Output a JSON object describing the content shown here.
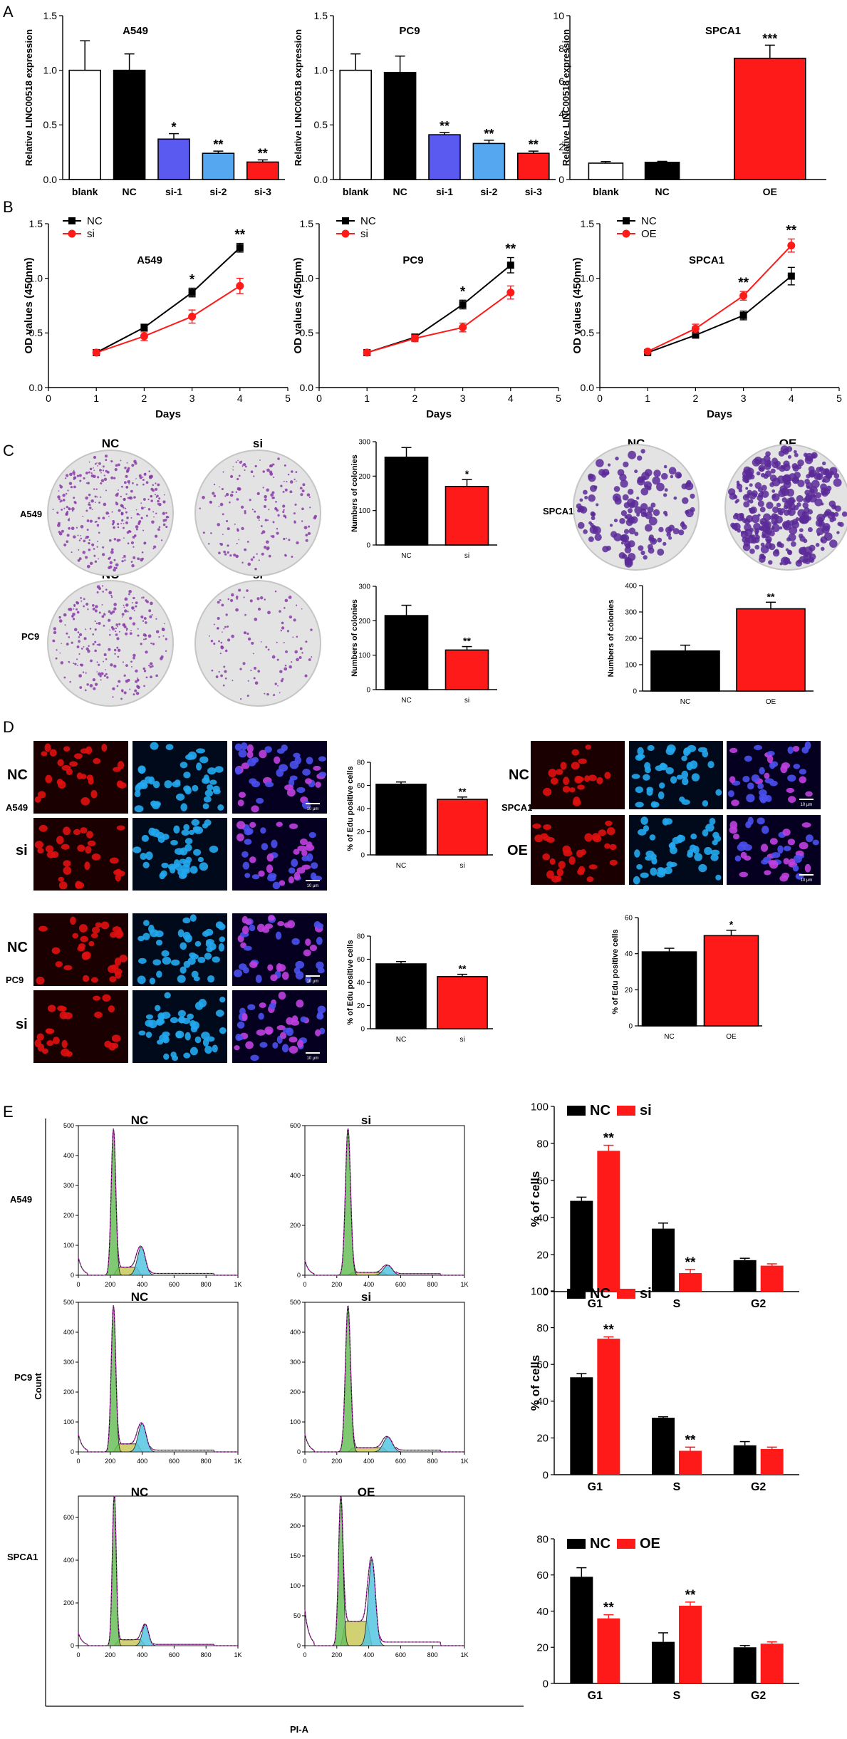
{
  "colors": {
    "black": "#000000",
    "red": "#ff1a1a",
    "white": "#ffffff",
    "si1": "#5a5af0",
    "si2": "#55a8f0",
    "si3": "#ff1a1a",
    "fillG1": "#6abf5a",
    "fillS": "#c9c85a",
    "fillG2": "#55c6e0",
    "envelope": "#d020d0",
    "plate": "#e2e3e2",
    "plateDots": "#8a3aa8",
    "plateDotsDense": "#5a2a98",
    "edu": "#e01010",
    "hoechst": "#22a8f0",
    "merge": "#8040e0"
  },
  "panel_letters": [
    "A",
    "B",
    "C",
    "D",
    "E"
  ],
  "chart_data": [
    {
      "id": "A-A549",
      "type": "bar",
      "title": "A549",
      "ylabel": "Relative LINC00518 expression",
      "ylim": [
        0,
        1.5
      ],
      "yticks": [
        "0.0",
        "0.5",
        "1.0",
        "1.5"
      ],
      "categories": [
        "blank",
        "NC",
        "si-1",
        "si-2",
        "si-3"
      ],
      "values": [
        1.0,
        1.0,
        0.37,
        0.24,
        0.16
      ],
      "errors": [
        0.27,
        0.15,
        0.05,
        0.02,
        0.02
      ],
      "colors": [
        "#ffffff",
        "#000000",
        "#5a5af0",
        "#55a8f0",
        "#ff1a1a"
      ],
      "annotations": [
        "",
        "",
        "*",
        "**",
        "**"
      ]
    },
    {
      "id": "A-PC9",
      "type": "bar",
      "title": "PC9",
      "ylabel": "Relative LINC00518 expression",
      "ylim": [
        0,
        1.5
      ],
      "yticks": [
        "0.0",
        "0.5",
        "1.0",
        "1.5"
      ],
      "categories": [
        "blank",
        "NC",
        "si-1",
        "si-2",
        "si-3"
      ],
      "values": [
        1.0,
        0.98,
        0.41,
        0.33,
        0.24
      ],
      "errors": [
        0.15,
        0.15,
        0.02,
        0.03,
        0.02
      ],
      "colors": [
        "#ffffff",
        "#000000",
        "#5a5af0",
        "#55a8f0",
        "#ff1a1a"
      ],
      "annotations": [
        "",
        "",
        "**",
        "**",
        "**"
      ]
    },
    {
      "id": "A-SPCA1",
      "type": "bar",
      "title": "SPCA1",
      "ylabel": "Relative LINC00518 expression",
      "ylim": [
        0,
        10
      ],
      "yticks": [
        "0",
        "2",
        "4",
        "6",
        "8",
        "10"
      ],
      "categories": [
        "blank",
        "NC",
        "OE"
      ],
      "values": [
        1.0,
        1.05,
        7.4
      ],
      "errors": [
        0.1,
        0.06,
        0.8
      ],
      "colors": [
        "#ffffff",
        "#000000",
        "#ff1a1a"
      ],
      "annotations": [
        "",
        "",
        "***"
      ]
    },
    {
      "id": "B-A549",
      "type": "line",
      "title": "A549",
      "xlabel": "Days",
      "ylabel": "OD values (450nm)",
      "xlim": [
        0,
        5
      ],
      "ylim": [
        0,
        1.5
      ],
      "xticks": [
        "0",
        "1",
        "2",
        "3",
        "4",
        "5"
      ],
      "yticks": [
        "0.0",
        "0.5",
        "1.0",
        "1.5"
      ],
      "series": [
        {
          "name": "NC",
          "marker": "square",
          "color": "#000000",
          "x": [
            1,
            2,
            3,
            4
          ],
          "y": [
            0.32,
            0.55,
            0.87,
            1.28
          ],
          "err": [
            0.01,
            0.03,
            0.04,
            0.04
          ]
        },
        {
          "name": "si",
          "marker": "circle",
          "color": "#ff1a1a",
          "x": [
            1,
            2,
            3,
            4
          ],
          "y": [
            0.32,
            0.47,
            0.65,
            0.93
          ],
          "err": [
            0.01,
            0.04,
            0.06,
            0.07
          ]
        }
      ],
      "annotations": [
        {
          "x": 3,
          "text": "*"
        },
        {
          "x": 4,
          "text": "**"
        }
      ]
    },
    {
      "id": "B-PC9",
      "type": "line",
      "title": "PC9",
      "xlabel": "Days",
      "ylabel": "OD values (450nm)",
      "xlim": [
        0,
        5
      ],
      "ylim": [
        0,
        1.5
      ],
      "xticks": [
        "0",
        "1",
        "2",
        "3",
        "4",
        "5"
      ],
      "yticks": [
        "0.0",
        "0.5",
        "1.0",
        "1.5"
      ],
      "series": [
        {
          "name": "NC",
          "marker": "square",
          "color": "#000000",
          "x": [
            1,
            2,
            3,
            4
          ],
          "y": [
            0.32,
            0.46,
            0.76,
            1.12
          ],
          "err": [
            0.01,
            0.03,
            0.04,
            0.07
          ]
        },
        {
          "name": "si",
          "marker": "circle",
          "color": "#ff1a1a",
          "x": [
            1,
            2,
            3,
            4
          ],
          "y": [
            0.32,
            0.45,
            0.55,
            0.87
          ],
          "err": [
            0.01,
            0.03,
            0.04,
            0.06
          ]
        }
      ],
      "annotations": [
        {
          "x": 3,
          "text": "*"
        },
        {
          "x": 4,
          "text": "**"
        }
      ]
    },
    {
      "id": "B-SPCA1",
      "type": "line",
      "title": "SPCA1",
      "xlabel": "Days",
      "ylabel": "OD values (450nm)",
      "xlim": [
        0,
        5
      ],
      "ylim": [
        0,
        1.5
      ],
      "xticks": [
        "0",
        "1",
        "2",
        "3",
        "4",
        "5"
      ],
      "yticks": [
        "0.0",
        "0.5",
        "1.0",
        "1.5"
      ],
      "series": [
        {
          "name": "NC",
          "marker": "square",
          "color": "#000000",
          "x": [
            1,
            2,
            3,
            4
          ],
          "y": [
            0.32,
            0.48,
            0.66,
            1.02
          ],
          "err": [
            0.01,
            0.02,
            0.04,
            0.08
          ]
        },
        {
          "name": "OE",
          "marker": "circle",
          "color": "#ff1a1a",
          "x": [
            1,
            2,
            3,
            4
          ],
          "y": [
            0.33,
            0.54,
            0.84,
            1.3
          ],
          "err": [
            0.01,
            0.04,
            0.04,
            0.06
          ]
        }
      ],
      "annotations": [
        {
          "x": 3,
          "text": "**"
        },
        {
          "x": 4,
          "text": "**"
        }
      ]
    },
    {
      "id": "C-A549",
      "type": "bar",
      "ylabel": "Numbers of colonies",
      "ylim": [
        0,
        300
      ],
      "yticks": [
        "0",
        "100",
        "200",
        "300"
      ],
      "categories": [
        "NC",
        "si"
      ],
      "values": [
        255,
        170
      ],
      "errors": [
        28,
        20
      ],
      "colors": [
        "#000000",
        "#ff1a1a"
      ],
      "annotations": [
        "",
        "*"
      ]
    },
    {
      "id": "C-PC9",
      "type": "bar",
      "ylabel": "Numbers of colonies",
      "ylim": [
        0,
        300
      ],
      "yticks": [
        "0",
        "100",
        "200",
        "300"
      ],
      "categories": [
        "NC",
        "si"
      ],
      "values": [
        215,
        115
      ],
      "errors": [
        30,
        10
      ],
      "colors": [
        "#000000",
        "#ff1a1a"
      ],
      "annotations": [
        "",
        "**"
      ]
    },
    {
      "id": "C-SPCA1",
      "type": "bar",
      "ylabel": "Numbers of colonies",
      "ylim": [
        0,
        400
      ],
      "yticks": [
        "0",
        "100",
        "200",
        "300",
        "400"
      ],
      "categories": [
        "NC",
        "OE"
      ],
      "values": [
        152,
        312
      ],
      "errors": [
        22,
        25
      ],
      "colors": [
        "#000000",
        "#ff1a1a"
      ],
      "annotations": [
        "",
        "**"
      ]
    },
    {
      "id": "D-A549",
      "type": "bar",
      "ylabel": "% of Edu positive cells",
      "ylim": [
        0,
        80
      ],
      "yticks": [
        "0",
        "20",
        "40",
        "60",
        "80"
      ],
      "categories": [
        "NC",
        "si"
      ],
      "values": [
        61,
        48
      ],
      "errors": [
        2,
        2
      ],
      "colors": [
        "#000000",
        "#ff1a1a"
      ],
      "annotations": [
        "",
        "**"
      ]
    },
    {
      "id": "D-PC9",
      "type": "bar",
      "ylabel": "% of Edu positive cells",
      "ylim": [
        0,
        80
      ],
      "yticks": [
        "0",
        "20",
        "40",
        "60",
        "80"
      ],
      "categories": [
        "NC",
        "si"
      ],
      "values": [
        56,
        45
      ],
      "errors": [
        2,
        2
      ],
      "colors": [
        "#000000",
        "#ff1a1a"
      ],
      "annotations": [
        "",
        "**"
      ]
    },
    {
      "id": "D-SPCA1",
      "type": "bar",
      "ylabel": "% of Edu positive cells",
      "ylim": [
        0,
        60
      ],
      "yticks": [
        "0",
        "20",
        "40",
        "60"
      ],
      "categories": [
        "NC",
        "OE"
      ],
      "values": [
        41,
        50
      ],
      "errors": [
        2,
        3
      ],
      "colors": [
        "#000000",
        "#ff1a1a"
      ],
      "annotations": [
        "",
        "*"
      ]
    },
    {
      "id": "E-A549",
      "type": "bar",
      "ylabel": "% of cells",
      "ylim": [
        0,
        100
      ],
      "yticks": [
        "0",
        "20",
        "40",
        "60",
        "80",
        "100"
      ],
      "categories": [
        "G1",
        "S",
        "G2"
      ],
      "series": [
        {
          "name": "NC",
          "color": "#000000",
          "values": [
            49,
            34,
            17
          ],
          "errors": [
            2,
            3,
            1
          ]
        },
        {
          "name": "si",
          "color": "#ff1a1a",
          "values": [
            76,
            10,
            14
          ],
          "errors": [
            3,
            2,
            1
          ]
        }
      ],
      "annotations": [
        {
          "category": "G1",
          "text": "**"
        },
        {
          "category": "S",
          "text": "**"
        }
      ]
    },
    {
      "id": "E-PC9",
      "type": "bar",
      "ylabel": "% of cells",
      "ylim": [
        0,
        100
      ],
      "yticks": [
        "0",
        "20",
        "40",
        "60",
        "80",
        "100"
      ],
      "categories": [
        "G1",
        "S",
        "G2"
      ],
      "series": [
        {
          "name": "NC",
          "color": "#000000",
          "values": [
            53,
            31,
            16
          ],
          "errors": [
            2,
            0.5,
            2
          ]
        },
        {
          "name": "si",
          "color": "#ff1a1a",
          "values": [
            74,
            13,
            14
          ],
          "errors": [
            1,
            2,
            1
          ]
        }
      ],
      "annotations": [
        {
          "category": "G1",
          "text": "**"
        },
        {
          "category": "S",
          "text": "**"
        }
      ]
    },
    {
      "id": "E-SPCA1",
      "type": "bar",
      "ylabel": "",
      "ylim": [
        0,
        80
      ],
      "yticks": [
        "0",
        "20",
        "40",
        "60",
        "80"
      ],
      "categories": [
        "G1",
        "S",
        "G2"
      ],
      "series": [
        {
          "name": "NC",
          "color": "#000000",
          "values": [
            59,
            23,
            20
          ],
          "errors": [
            5,
            5,
            1
          ]
        },
        {
          "name": "OE",
          "color": "#ff1a1a",
          "values": [
            36,
            43,
            22
          ],
          "errors": [
            2,
            2,
            1
          ]
        }
      ],
      "annotations": [
        {
          "category": "G1",
          "text": "**"
        },
        {
          "category": "S",
          "text": "**"
        }
      ]
    },
    {
      "id": "E-hist-A549-NC",
      "type": "area",
      "title": "NC",
      "ylim": [
        0,
        500
      ],
      "yticks": [
        "0",
        "100",
        "200",
        "300",
        "400",
        "500"
      ],
      "xticks": [
        "0",
        "200",
        "400",
        "600",
        "800",
        "1K"
      ],
      "peaks": [
        {
          "x": 220,
          "h": 490,
          "w": 14
        },
        {
          "x": 395,
          "h": 95,
          "w": 25
        }
      ]
    },
    {
      "id": "E-hist-A549-si",
      "type": "area",
      "title": "si",
      "ylim": [
        0,
        600
      ],
      "yticks": [
        "0",
        "200",
        "400",
        "600"
      ],
      "xticks": [
        "0",
        "200",
        "400",
        "600",
        "800",
        "1K"
      ],
      "peaks": [
        {
          "x": 270,
          "h": 590,
          "w": 16
        },
        {
          "x": 520,
          "h": 40,
          "w": 28
        }
      ]
    },
    {
      "id": "E-hist-PC9-NC",
      "type": "area",
      "title": "NC",
      "ylim": [
        0,
        500
      ],
      "yticks": [
        "0",
        "100",
        "200",
        "300",
        "400",
        "500"
      ],
      "xticks": [
        "0",
        "200",
        "400",
        "600",
        "800",
        "1K"
      ],
      "peaks": [
        {
          "x": 220,
          "h": 490,
          "w": 14
        },
        {
          "x": 400,
          "h": 95,
          "w": 25
        }
      ]
    },
    {
      "id": "E-hist-PC9-si",
      "type": "area",
      "title": "si",
      "ylim": [
        0,
        500
      ],
      "yticks": [
        "0",
        "100",
        "200",
        "300",
        "400",
        "500"
      ],
      "xticks": [
        "0",
        "200",
        "400",
        "600",
        "800",
        "1K"
      ],
      "peaks": [
        {
          "x": 270,
          "h": 490,
          "w": 16
        },
        {
          "x": 520,
          "h": 50,
          "w": 28
        }
      ]
    },
    {
      "id": "E-hist-SPCA1-NC",
      "type": "area",
      "title": "NC",
      "ylim": [
        0,
        700
      ],
      "yticks": [
        "0",
        "200",
        "400",
        "600"
      ],
      "xticks": [
        "0",
        "200",
        "400",
        "600",
        "800",
        "1K"
      ],
      "peaks": [
        {
          "x": 225,
          "h": 720,
          "w": 12
        },
        {
          "x": 420,
          "h": 100,
          "w": 20
        }
      ]
    },
    {
      "id": "E-hist-SPCA1-OE",
      "type": "area",
      "title": "OE",
      "ylim": [
        0,
        250
      ],
      "yticks": [
        "0",
        "50",
        "100",
        "150",
        "200",
        "250"
      ],
      "xticks": [
        "0",
        "200",
        "400",
        "600",
        "800",
        "1K"
      ],
      "peaks": [
        {
          "x": 225,
          "h": 250,
          "w": 14
        },
        {
          "x": 420,
          "h": 145,
          "w": 22
        }
      ]
    }
  ],
  "panelC": {
    "a549_nc_label": "NC",
    "a549_si_label": "si",
    "pc9_nc_label": "NC",
    "pc9_si_label": "si",
    "spca1_nc_label": "NC",
    "spca1_oe_label": "OE",
    "row_a549": "A549",
    "row_pc9": "PC9",
    "row_spca1": "SPCA1"
  },
  "panelD": {
    "row_nc": "NC",
    "row_si": "si",
    "row_oe": "OE",
    "cell_a549": "A549",
    "cell_pc9": "PC9",
    "cell_spca1": "SPCA1",
    "scale_bar": "10 μm"
  },
  "panelE": {
    "row_a549": "A549",
    "row_pc9": "PC9",
    "row_spca1": "SPCA1",
    "count_label": "Count",
    "pia_label": "PI-A"
  }
}
